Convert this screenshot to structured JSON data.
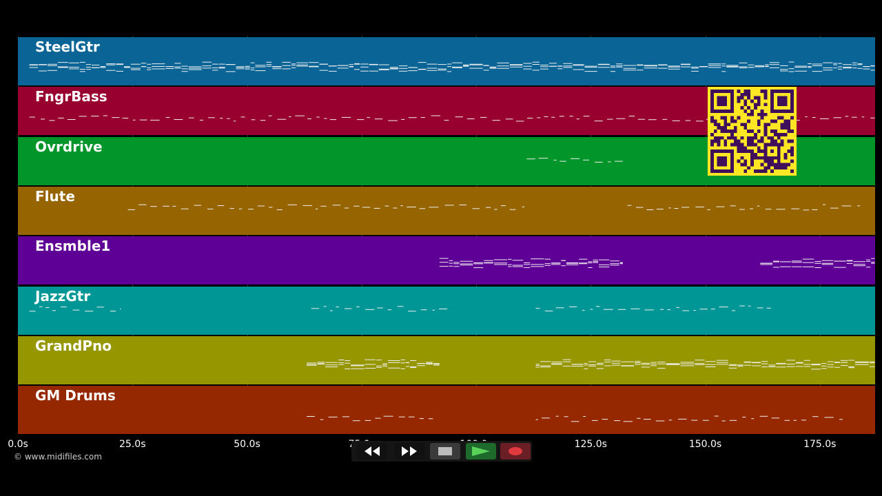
{
  "copyright": "© www.midifiles.com",
  "tracks": [
    {
      "name": "SteelGtr",
      "color": "#0a6496"
    },
    {
      "name": "FngrBass",
      "color": "#980030"
    },
    {
      "name": "Ovrdrive",
      "color": "#02962a"
    },
    {
      "name": "Flute",
      "color": "#966400"
    },
    {
      "name": "Ensmble1",
      "color": "#5e0096"
    },
    {
      "name": "JazzGtr",
      "color": "#009696"
    },
    {
      "name": "GrandPno",
      "color": "#969600"
    },
    {
      "name": "GM Drums",
      "color": "#962800"
    }
  ],
  "timeline": {
    "ticks": [
      "0.0s",
      "25.0s",
      "50.0s",
      "75.0s",
      "100.0s",
      "125.0s",
      "150.0s",
      "175.0s"
    ],
    "max_seconds": 187
  },
  "note_ranges": [
    [
      [
        2.5,
        187
      ]
    ],
    [
      [
        2.5,
        187
      ]
    ],
    [
      [
        111,
        132
      ]
    ],
    [
      [
        24,
        111
      ],
      [
        133,
        184
      ]
    ],
    [
      [
        92,
        132
      ],
      [
        162,
        187
      ]
    ],
    [
      [
        2.5,
        22.5
      ],
      [
        64,
        94
      ],
      [
        113,
        165
      ]
    ],
    [
      [
        63,
        92
      ],
      [
        113,
        187
      ]
    ],
    [
      [
        63,
        91
      ],
      [
        113,
        180
      ]
    ]
  ],
  "transport": {
    "buttons": [
      {
        "name": "rewind-button",
        "icon": "rewind-icon"
      },
      {
        "name": "fast-forward-button",
        "icon": "fast-forward-icon"
      },
      {
        "name": "stop-button",
        "icon": "stop-icon"
      },
      {
        "name": "play-button",
        "icon": "play-icon"
      },
      {
        "name": "record-button",
        "icon": "record-icon"
      }
    ]
  }
}
